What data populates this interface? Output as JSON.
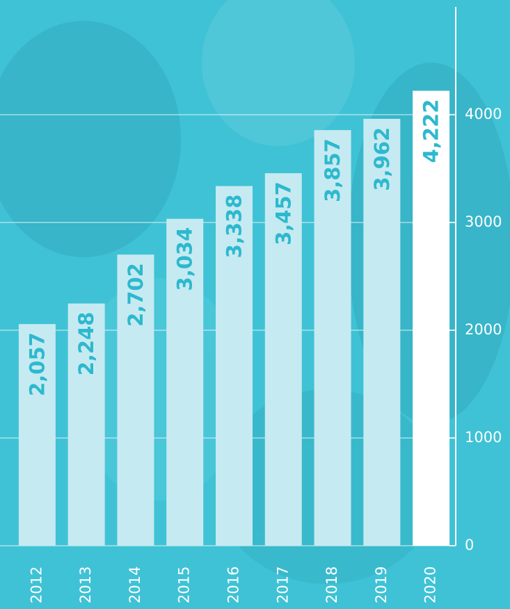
{
  "chart_data": {
    "type": "bar",
    "categories": [
      "2012",
      "2013",
      "2014",
      "2015",
      "2016",
      "2017",
      "2018",
      "2019",
      "2020"
    ],
    "values": [
      2057,
      2248,
      2702,
      3034,
      3338,
      3457,
      3857,
      3962,
      4222
    ],
    "value_labels": [
      "2,057",
      "2,248",
      "2,702",
      "3,034",
      "3,338",
      "3,457",
      "3,857",
      "3,962",
      "4,222"
    ],
    "colors": [
      "#c6eaf1",
      "#c6eaf1",
      "#c6eaf1",
      "#c6eaf1",
      "#c6eaf1",
      "#c6eaf1",
      "#c6eaf1",
      "#c6eaf1",
      "#ffffff"
    ],
    "ylim": [
      0,
      5000
    ],
    "yticks": [
      0,
      1000,
      2000,
      3000,
      4000
    ],
    "grid": true
  }
}
